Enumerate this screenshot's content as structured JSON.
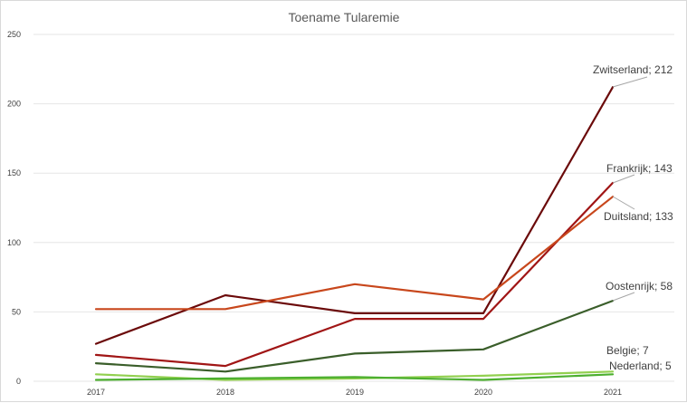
{
  "chart_data": {
    "type": "line",
    "title": "Toename Tularemie",
    "xlabel": "",
    "ylabel": "",
    "categories": [
      "2017",
      "2018",
      "2019",
      "2020",
      "2021"
    ],
    "ylim": [
      0,
      250
    ],
    "yticks": [
      0,
      50,
      100,
      150,
      200,
      250
    ],
    "grid": "horizontal",
    "legend": "none",
    "series": [
      {
        "name": "Zwitserland",
        "color": "#6b0a0a",
        "values": [
          27,
          62,
          49,
          49,
          212
        ],
        "label": "Zwitserland; 212"
      },
      {
        "name": "Frankrijk",
        "color": "#a01515",
        "values": [
          19,
          11,
          45,
          45,
          143
        ],
        "label": "Frankrijk; 143"
      },
      {
        "name": "Duitsland",
        "color": "#c8471c",
        "values": [
          52,
          52,
          70,
          59,
          133
        ],
        "label": "Duitsland; 133"
      },
      {
        "name": "Oostenrijk",
        "color": "#3a5e2a",
        "values": [
          13,
          7,
          20,
          23,
          58
        ],
        "label": "Oostenrijk; 58"
      },
      {
        "name": "Belgie",
        "color": "#92d050",
        "values": [
          5,
          1,
          2,
          4,
          7
        ],
        "label": "Belgie; 7"
      },
      {
        "name": "Nederland",
        "color": "#4caf2f",
        "values": [
          1,
          2,
          3,
          1,
          5
        ],
        "label": "Nederland; 5"
      }
    ]
  }
}
